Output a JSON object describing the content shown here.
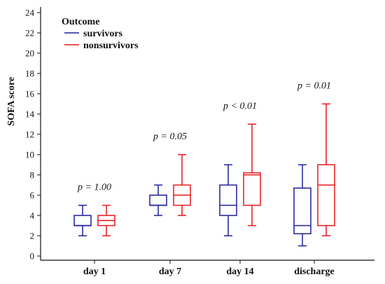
{
  "chart_data": {
    "type": "boxplot",
    "title": "",
    "xlabel": "",
    "ylabel": "SOFA score",
    "ylim": [
      0,
      24
    ],
    "yticks": [
      0,
      2,
      4,
      6,
      8,
      10,
      12,
      14,
      16,
      18,
      20,
      22,
      24
    ],
    "categories": [
      "day 1",
      "day 7",
      "day 14",
      "discharge"
    ],
    "p_values": [
      "p = 1.00",
      "p = 0.05",
      "p < 0.01",
      "p = 0.01"
    ],
    "legend": {
      "title": "Outcome",
      "placement": "top-left"
    },
    "series": [
      {
        "name": "survivors",
        "color": "#1f1f99",
        "boxes": [
          {
            "min": 2,
            "q1": 3,
            "median": 3,
            "q3": 4,
            "max": 5
          },
          {
            "min": 4,
            "q1": 5,
            "median": 5,
            "q3": 6,
            "max": 7
          },
          {
            "min": 2,
            "q1": 4,
            "median": 5,
            "q3": 7,
            "max": 9
          },
          {
            "min": 1,
            "q1": 2.2,
            "median": 3,
            "q3": 6.7,
            "max": 9
          }
        ]
      },
      {
        "name": "nonsurvivors",
        "color": "#e8161b",
        "boxes": [
          {
            "min": 2,
            "q1": 3,
            "median": 3.5,
            "q3": 4,
            "max": 5
          },
          {
            "min": 4,
            "q1": 5,
            "median": 6,
            "q3": 7,
            "max": 10
          },
          {
            "min": 3,
            "q1": 5,
            "median": 8,
            "q3": 8.2,
            "max": 13
          },
          {
            "min": 2,
            "q1": 3,
            "median": 7,
            "q3": 9,
            "max": 15
          }
        ]
      }
    ]
  }
}
